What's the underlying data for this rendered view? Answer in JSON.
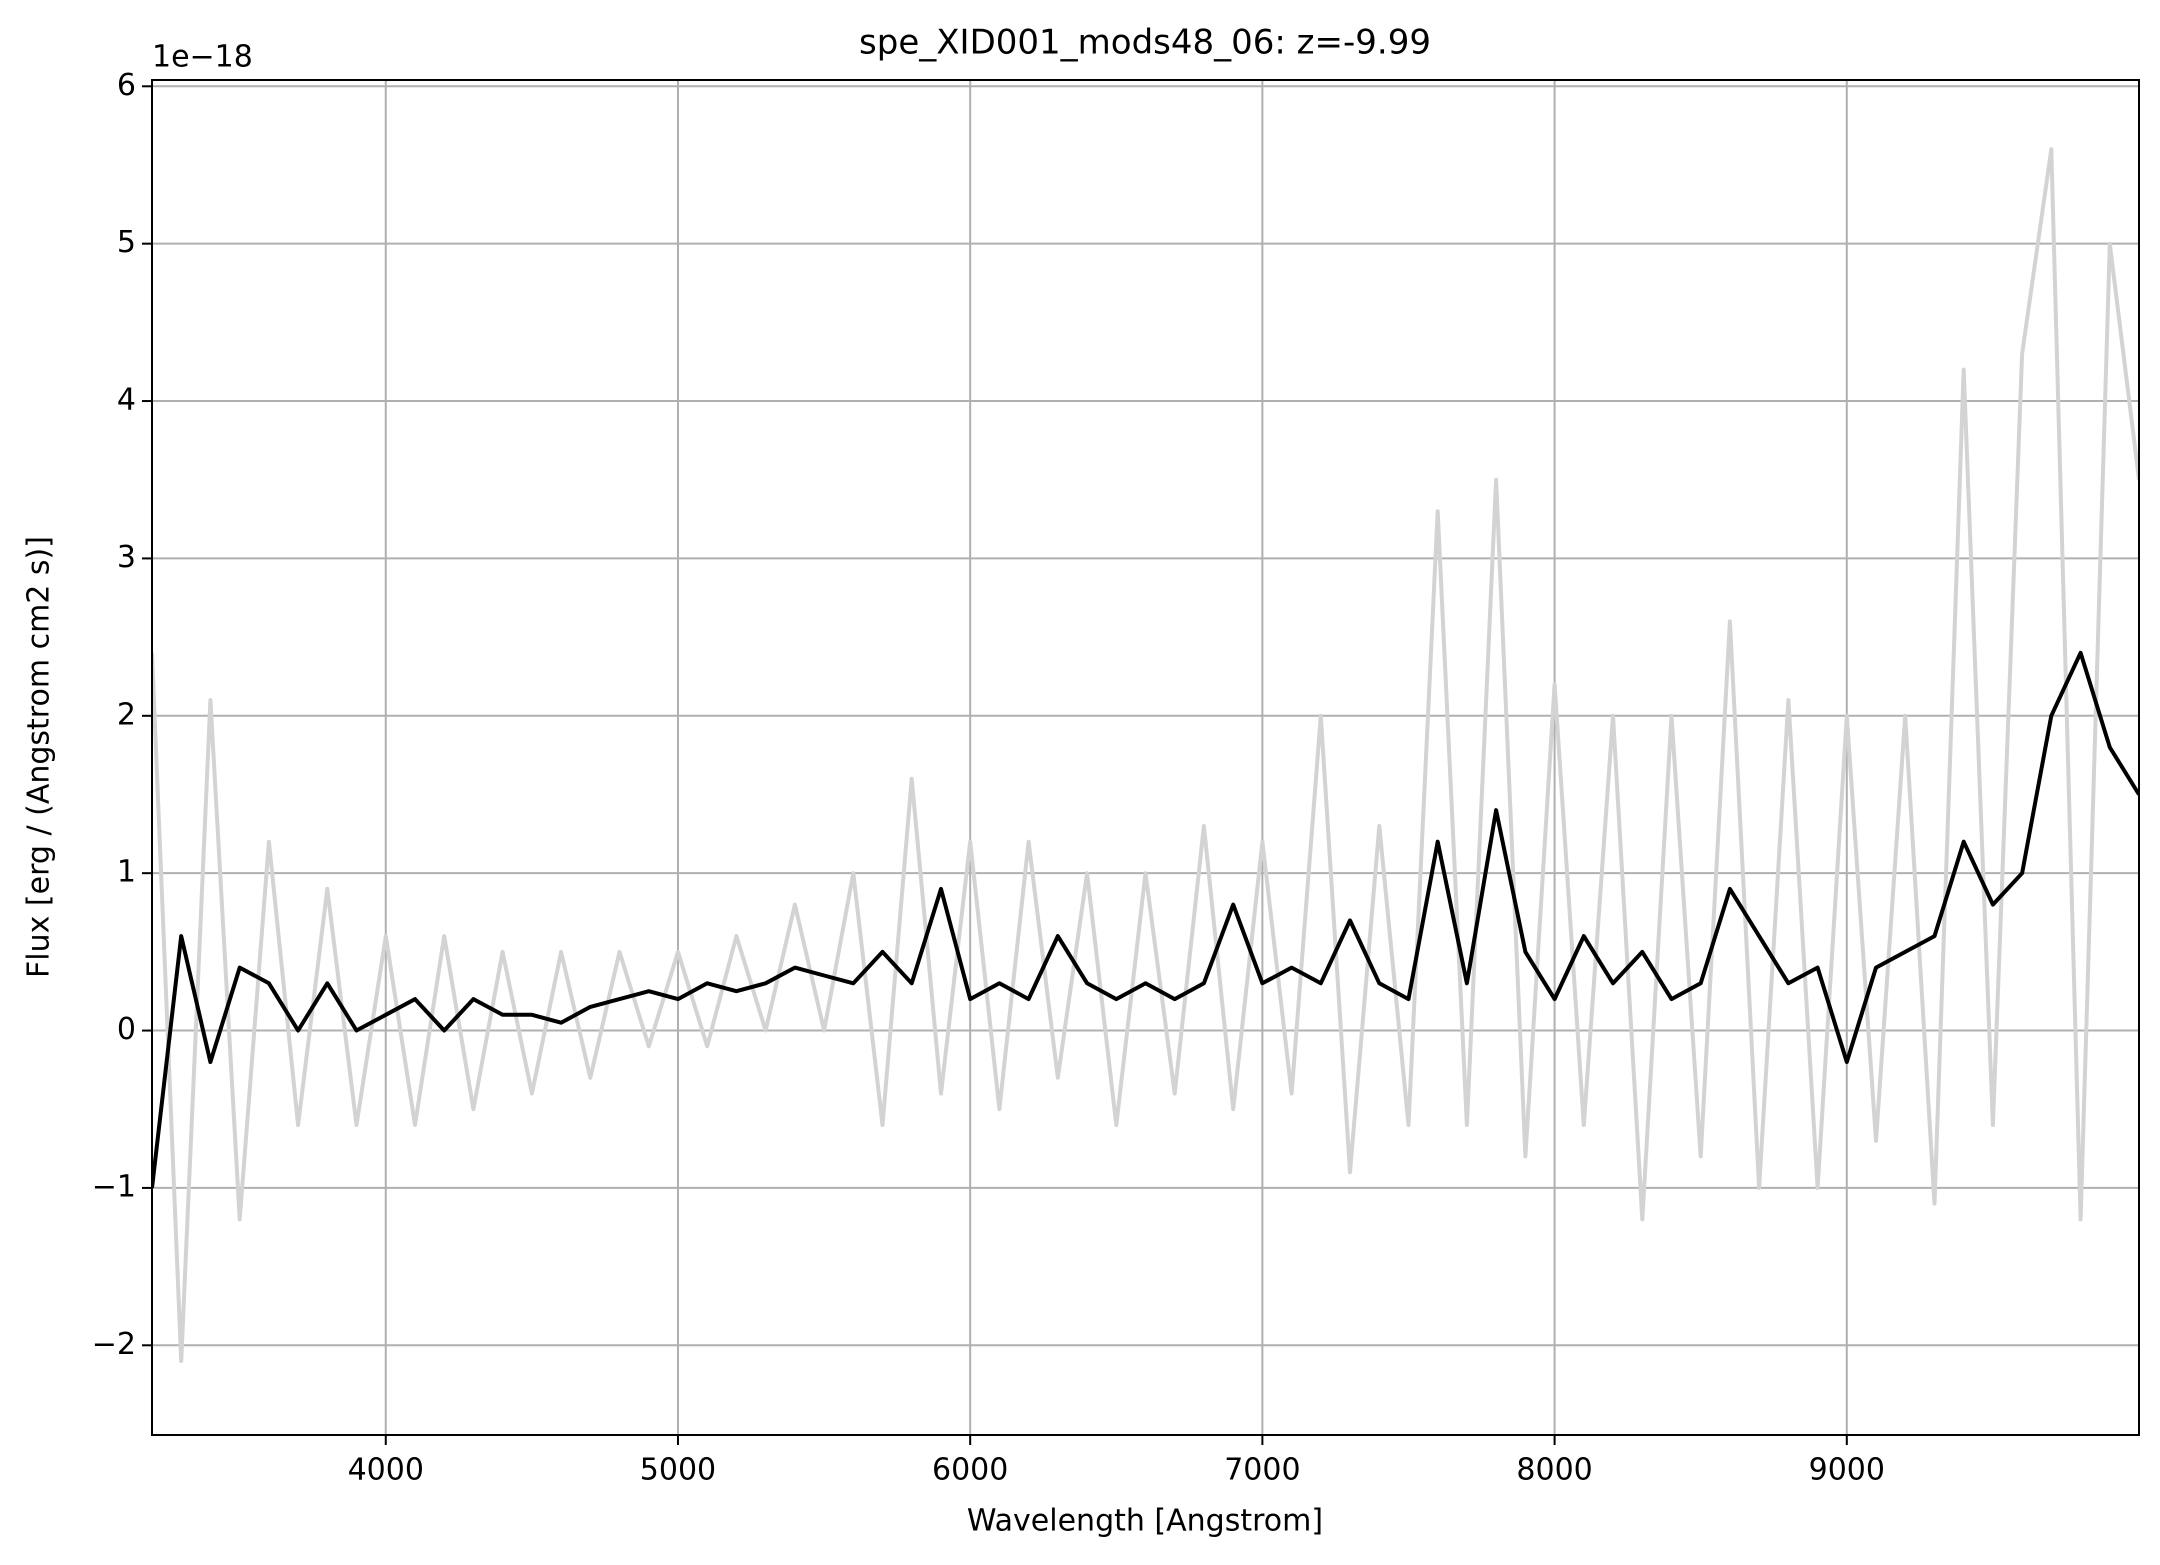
{
  "chart_data": {
    "type": "line",
    "title": "spe_XID001_mods48_06: z=-9.99",
    "x_label": "Wavelength [Angstrom]",
    "y_label": "Flux [erg / (Angstrom cm2 s)]",
    "y_offset_label": "1e−18",
    "x": [
      3200,
      3300,
      3400,
      3500,
      3600,
      3700,
      3800,
      3900,
      4000,
      4100,
      4200,
      4300,
      4400,
      4500,
      4600,
      4700,
      4800,
      4900,
      5000,
      5100,
      5200,
      5300,
      5400,
      5500,
      5600,
      5700,
      5800,
      5900,
      6000,
      6100,
      6200,
      6300,
      6400,
      6500,
      6600,
      6700,
      6800,
      6900,
      7000,
      7100,
      7200,
      7300,
      7400,
      7500,
      7600,
      7700,
      7800,
      7900,
      8000,
      8100,
      8200,
      8300,
      8400,
      8500,
      8600,
      8700,
      8800,
      8900,
      9000,
      9100,
      9200,
      9300,
      9400,
      9500,
      9600,
      9700,
      9800,
      9900,
      10000
    ],
    "series": [
      {
        "color": "#d3d3d3",
        "values": [
          2.4,
          -2.1,
          2.1,
          -1.2,
          1.2,
          -0.6,
          0.9,
          -0.6,
          0.6,
          -0.6,
          0.6,
          -0.5,
          0.5,
          -0.4,
          0.5,
          -0.3,
          0.5,
          -0.1,
          0.5,
          -0.1,
          0.6,
          0.0,
          0.8,
          0.0,
          1.0,
          -0.6,
          1.6,
          -0.4,
          1.2,
          -0.5,
          1.2,
          -0.3,
          1.0,
          -0.6,
          1.0,
          -0.4,
          1.3,
          -0.5,
          1.2,
          -0.4,
          2.0,
          -0.9,
          1.3,
          -0.6,
          3.3,
          -0.6,
          3.5,
          -0.8,
          2.2,
          -0.6,
          2.0,
          -1.2,
          2.0,
          -0.8,
          2.6,
          -1.0,
          2.1,
          -1.0,
          2.0,
          -0.7,
          2.0,
          -1.1,
          4.2,
          -0.6,
          4.3,
          5.6,
          -1.2,
          5.0,
          3.5
        ]
      },
      {
        "color": "#000000",
        "values": [
          -1.0,
          0.6,
          -0.2,
          0.4,
          0.3,
          0.0,
          0.3,
          0.0,
          0.1,
          0.2,
          0.0,
          0.2,
          0.1,
          0.1,
          0.05,
          0.15,
          0.2,
          0.25,
          0.2,
          0.3,
          0.25,
          0.3,
          0.4,
          0.35,
          0.3,
          0.5,
          0.3,
          0.9,
          0.2,
          0.3,
          0.2,
          0.6,
          0.3,
          0.2,
          0.3,
          0.2,
          0.3,
          0.8,
          0.3,
          0.4,
          0.3,
          0.7,
          0.3,
          0.2,
          1.2,
          0.3,
          1.4,
          0.5,
          0.2,
          0.6,
          0.3,
          0.5,
          0.2,
          0.3,
          0.9,
          0.6,
          0.3,
          0.4,
          -0.2,
          0.4,
          0.5,
          0.6,
          1.2,
          0.8,
          1.0,
          2.0,
          2.4,
          1.8,
          1.5
        ]
      }
    ],
    "xlim": [
      3200,
      10000
    ],
    "ylim": [
      -2.57,
      6.04
    ],
    "xticks": [
      4000,
      5000,
      6000,
      7000,
      8000,
      9000
    ],
    "yticks": [
      {
        "value": -2,
        "label": "−2"
      },
      {
        "value": -1,
        "label": "−1"
      },
      0,
      1,
      2,
      3,
      4,
      5,
      6
    ],
    "grid": true
  }
}
